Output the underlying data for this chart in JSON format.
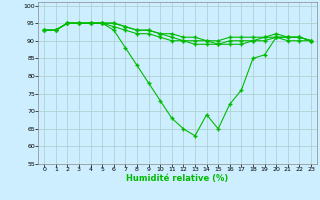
{
  "xlabel": "Humidité relative (%)",
  "background_color": "#cceeff",
  "grid_color": "#aacccc",
  "line_color": "#00bb00",
  "ylim": [
    55,
    101
  ],
  "xlim": [
    -0.5,
    23.5
  ],
  "yticks": [
    55,
    60,
    65,
    70,
    75,
    80,
    85,
    90,
    95,
    100
  ],
  "xticks": [
    0,
    1,
    2,
    3,
    4,
    5,
    6,
    7,
    8,
    9,
    10,
    11,
    12,
    13,
    14,
    15,
    16,
    17,
    18,
    19,
    20,
    21,
    22,
    23
  ],
  "series": [
    [
      93,
      93,
      95,
      95,
      95,
      95,
      93,
      88,
      83,
      78,
      73,
      68,
      65,
      63,
      69,
      65,
      72,
      76,
      85,
      86,
      91,
      90,
      90,
      90
    ],
    [
      93,
      93,
      95,
      95,
      95,
      95,
      95,
      94,
      93,
      93,
      92,
      92,
      91,
      91,
      90,
      90,
      91,
      91,
      91,
      91,
      91,
      91,
      91,
      90
    ],
    [
      93,
      93,
      95,
      95,
      95,
      95,
      95,
      94,
      93,
      93,
      92,
      91,
      90,
      90,
      90,
      89,
      90,
      90,
      90,
      91,
      92,
      91,
      91,
      90
    ],
    [
      93,
      93,
      95,
      95,
      95,
      95,
      94,
      93,
      92,
      92,
      91,
      90,
      90,
      89,
      89,
      89,
      89,
      89,
      90,
      90,
      91,
      91,
      91,
      90
    ]
  ]
}
